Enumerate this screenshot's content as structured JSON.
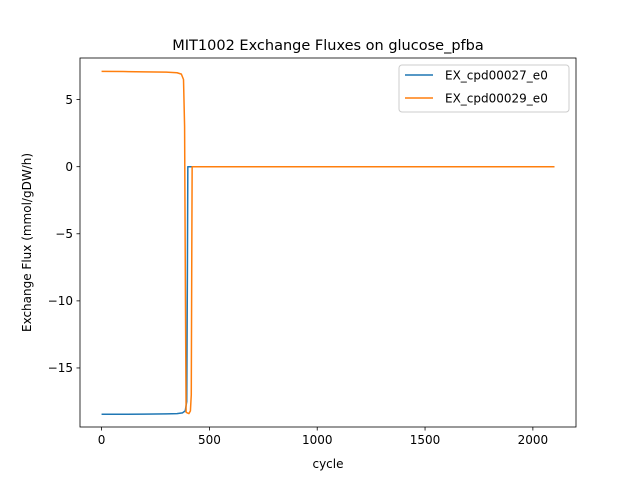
{
  "chart_data": {
    "type": "line",
    "title": "MIT1002 Exchange Fluxes on glucose_pfba",
    "xlabel": "cycle",
    "ylabel": "Exchange Flux (mmol/gDW/h)",
    "xlim": [
      -100,
      2200
    ],
    "ylim": [
      -19.4,
      8.1
    ],
    "xticks": [
      0,
      500,
      1000,
      1500,
      2000
    ],
    "xtick_labels": [
      "0",
      "500",
      "1000",
      "1500",
      "2000"
    ],
    "yticks": [
      5,
      0,
      -5,
      -10,
      -15
    ],
    "ytick_labels": [
      "5",
      "0",
      "−5",
      "−10",
      "−15"
    ],
    "grid": false,
    "legend_position": "top-right",
    "series": [
      {
        "name": "EX_cpd00027_e0",
        "color": "#1f77b4",
        "points": [
          [
            0,
            -18.45
          ],
          [
            100,
            -18.45
          ],
          [
            200,
            -18.44
          ],
          [
            300,
            -18.42
          ],
          [
            350,
            -18.4
          ],
          [
            375,
            -18.35
          ],
          [
            388,
            -18.2
          ],
          [
            395,
            -17.5
          ],
          [
            398,
            -8.0
          ],
          [
            400,
            0.0
          ],
          [
            420,
            0.0
          ],
          [
            800,
            0.0
          ],
          [
            1200,
            0.0
          ],
          [
            1600,
            0.0
          ],
          [
            2100,
            0.0
          ]
        ]
      },
      {
        "name": "EX_cpd00029_e0",
        "color": "#ff7f0e",
        "points": [
          [
            0,
            7.1
          ],
          [
            100,
            7.09
          ],
          [
            200,
            7.07
          ],
          [
            300,
            7.05
          ],
          [
            350,
            7.0
          ],
          [
            370,
            6.9
          ],
          [
            380,
            6.5
          ],
          [
            385,
            3.0
          ],
          [
            389,
            -10.0
          ],
          [
            392,
            -18.3
          ],
          [
            398,
            -18.35
          ],
          [
            405,
            -18.4
          ],
          [
            412,
            -18.2
          ],
          [
            416,
            -17.0
          ],
          [
            418,
            -8.0
          ],
          [
            420,
            0.0
          ],
          [
            440,
            0.0
          ],
          [
            800,
            0.0
          ],
          [
            1200,
            0.0
          ],
          [
            1600,
            0.0
          ],
          [
            2100,
            0.0
          ]
        ]
      }
    ]
  }
}
